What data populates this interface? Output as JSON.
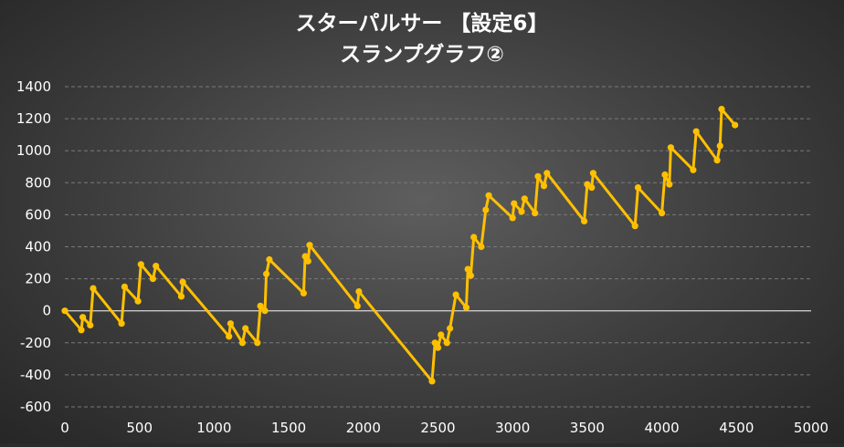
{
  "chart_data": {
    "type": "line",
    "title": "スターパルサー 【設定6】",
    "subtitle": "スランプグラフ②",
    "xlabel": "",
    "ylabel": "",
    "xlim": [
      0,
      5000
    ],
    "ylim": [
      -600,
      1400
    ],
    "xticks": [
      "0",
      "500",
      "1000",
      "1500",
      "2000",
      "2500",
      "3000",
      "3500",
      "4000",
      "4500",
      "5000"
    ],
    "yticks": [
      "1400",
      "1200",
      "1000",
      "800",
      "600",
      "400",
      "200",
      "0",
      "-200",
      "-400",
      "-600"
    ],
    "grid": true,
    "legend": "none",
    "series": [
      {
        "color": "#ffc000",
        "points": [
          [
            0,
            0
          ],
          [
            110,
            -120
          ],
          [
            120,
            -40
          ],
          [
            170,
            -90
          ],
          [
            190,
            140
          ],
          [
            380,
            -80
          ],
          [
            400,
            150
          ],
          [
            490,
            60
          ],
          [
            510,
            290
          ],
          [
            590,
            200
          ],
          [
            610,
            280
          ],
          [
            780,
            90
          ],
          [
            790,
            180
          ],
          [
            1100,
            -160
          ],
          [
            1110,
            -80
          ],
          [
            1190,
            -200
          ],
          [
            1210,
            -110
          ],
          [
            1290,
            -200
          ],
          [
            1310,
            30
          ],
          [
            1340,
            0
          ],
          [
            1350,
            230
          ],
          [
            1370,
            320
          ],
          [
            1600,
            110
          ],
          [
            1610,
            340
          ],
          [
            1630,
            310
          ],
          [
            1640,
            410
          ],
          [
            1960,
            30
          ],
          [
            1970,
            120
          ],
          [
            2460,
            -440
          ],
          [
            2480,
            -200
          ],
          [
            2500,
            -230
          ],
          [
            2520,
            -150
          ],
          [
            2560,
            -200
          ],
          [
            2580,
            -110
          ],
          [
            2620,
            100
          ],
          [
            2690,
            20
          ],
          [
            2700,
            260
          ],
          [
            2720,
            220
          ],
          [
            2740,
            460
          ],
          [
            2790,
            400
          ],
          [
            2820,
            630
          ],
          [
            2840,
            720
          ],
          [
            3000,
            580
          ],
          [
            3010,
            670
          ],
          [
            3060,
            620
          ],
          [
            3080,
            700
          ],
          [
            3150,
            610
          ],
          [
            3170,
            840
          ],
          [
            3210,
            780
          ],
          [
            3230,
            860
          ],
          [
            3480,
            560
          ],
          [
            3500,
            790
          ],
          [
            3530,
            770
          ],
          [
            3540,
            860
          ],
          [
            3820,
            530
          ],
          [
            3840,
            770
          ],
          [
            4000,
            610
          ],
          [
            4020,
            850
          ],
          [
            4050,
            790
          ],
          [
            4060,
            1020
          ],
          [
            4210,
            880
          ],
          [
            4230,
            1120
          ],
          [
            4370,
            940
          ],
          [
            4390,
            1030
          ],
          [
            4400,
            1260
          ],
          [
            4490,
            1160
          ]
        ]
      }
    ]
  }
}
